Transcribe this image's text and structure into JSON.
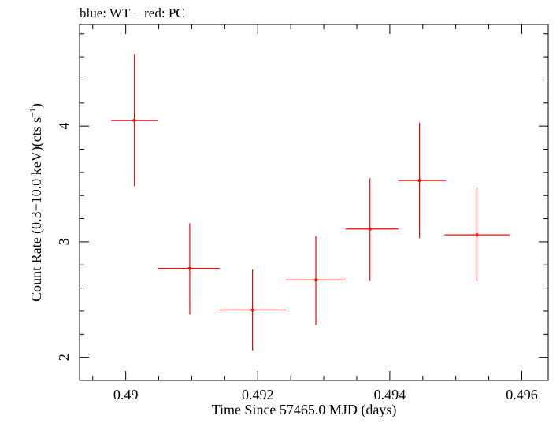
{
  "chart_data": {
    "type": "scatter",
    "title": "blue: WT − red: PC",
    "xlabel": "Time Since 57465.0 MJD (days)",
    "ylabel_main": "Count Rate (0.3−10.0 keV)(cts s",
    "ylabel_sup": "−1",
    "ylabel_close": ")",
    "xlim": [
      0.4893,
      0.4964
    ],
    "ylim": [
      1.8,
      4.88
    ],
    "x_ticks": [
      {
        "value": 0.49,
        "label": "0.49"
      },
      {
        "value": 0.492,
        "label": "0.492"
      },
      {
        "value": 0.494,
        "label": "0.494"
      },
      {
        "value": 0.496,
        "label": "0.496"
      }
    ],
    "y_ticks": [
      {
        "value": 2,
        "label": "2"
      },
      {
        "value": 3,
        "label": "3"
      },
      {
        "value": 4,
        "label": "4"
      }
    ],
    "grid": false,
    "series": [
      {
        "name": "PC",
        "color": "#ff0000",
        "points": [
          {
            "x": 0.49013,
            "y": 4.05,
            "x_lo": 0.48978,
            "x_hi": 0.49048,
            "y_lo": 3.48,
            "y_hi": 4.62
          },
          {
            "x": 0.49097,
            "y": 2.77,
            "x_lo": 0.49048,
            "x_hi": 0.49142,
            "y_lo": 2.37,
            "y_hi": 3.16
          },
          {
            "x": 0.49192,
            "y": 2.41,
            "x_lo": 0.49142,
            "x_hi": 0.49243,
            "y_lo": 2.06,
            "y_hi": 2.76
          },
          {
            "x": 0.49288,
            "y": 2.67,
            "x_lo": 0.49243,
            "x_hi": 0.49333,
            "y_lo": 2.28,
            "y_hi": 3.05
          },
          {
            "x": 0.4937,
            "y": 3.11,
            "x_lo": 0.49333,
            "x_hi": 0.49413,
            "y_lo": 2.66,
            "y_hi": 3.55
          },
          {
            "x": 0.49445,
            "y": 3.53,
            "x_lo": 0.49413,
            "x_hi": 0.49485,
            "y_lo": 3.03,
            "y_hi": 4.03
          },
          {
            "x": 0.49532,
            "y": 3.06,
            "x_lo": 0.49483,
            "x_hi": 0.49582,
            "y_lo": 2.66,
            "y_hi": 3.46
          }
        ]
      }
    ]
  }
}
